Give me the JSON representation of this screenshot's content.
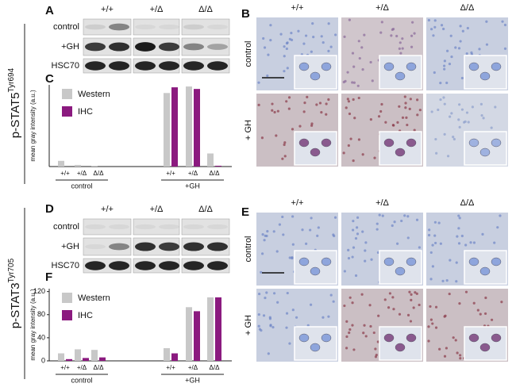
{
  "figure": {
    "stat5_label": "p-STAT5",
    "stat5_sup": "Tyr694",
    "stat3_label": "p-STAT3",
    "stat3_sup": "Tyr705",
    "panel_letters": [
      "A",
      "B",
      "C",
      "D",
      "E",
      "F"
    ],
    "genotypes": [
      "+/+",
      "+/Δ",
      "Δ/Δ"
    ],
    "blot_rows": [
      "control",
      "+GH",
      "HSC70"
    ],
    "ihc_rows": [
      "control",
      "+ GH"
    ]
  },
  "chart_data": [
    {
      "type": "bar",
      "ylabel": "mean gray intensity (a.u.)",
      "categories": [
        "+/+",
        "+/Δ",
        "Δ/Δ",
        "+/+",
        "+/Δ",
        "Δ/Δ"
      ],
      "group_labels": [
        "control",
        "+GH"
      ],
      "series": [
        {
          "name": "Western",
          "color": "#c8c8c8",
          "values": [
            7,
            2,
            1,
            90,
            98,
            16
          ]
        },
        {
          "name": "IHC",
          "color": "#8b1a7f",
          "values": [
            0,
            0,
            0,
            97,
            95,
            1
          ]
        }
      ],
      "ylim": [
        0,
        100
      ],
      "legend": "upper left"
    },
    {
      "type": "bar",
      "ylabel": "mean gray intensity (a.u.)",
      "categories": [
        "+/+",
        "+/Δ",
        "Δ/Δ",
        "+/+",
        "+/Δ",
        "Δ/Δ"
      ],
      "group_labels": [
        "control",
        "+GH"
      ],
      "series": [
        {
          "name": "Western",
          "color": "#c8c8c8",
          "values": [
            13,
            20,
            19,
            22,
            93,
            110
          ]
        },
        {
          "name": "IHC",
          "color": "#8b1a7f",
          "values": [
            3,
            5,
            6,
            13,
            86,
            110
          ]
        }
      ],
      "ylim": [
        0,
        125
      ],
      "yticks": [
        0,
        40,
        80,
        120
      ],
      "legend": "upper left"
    }
  ]
}
